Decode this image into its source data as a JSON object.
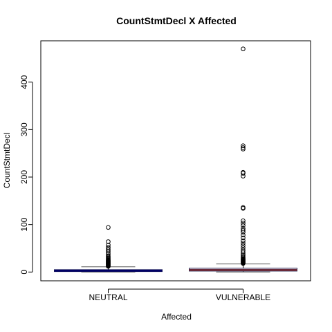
{
  "chart_data": {
    "type": "boxplot",
    "title": "CountStmtDecl X Affected",
    "xlabel": "Affected",
    "ylabel": "CountStmtDecl",
    "categories": [
      "NEUTRAL",
      "VULNERABLE"
    ],
    "ylim": [
      -18.5,
      487
    ],
    "yticks": [
      0,
      100,
      200,
      300,
      400
    ],
    "grid": false,
    "legend": "none",
    "colors": {
      "box_fill": [
        "#f4e6ef",
        "#f4e6ef"
      ],
      "box_border": [
        "#2a2a55",
        "#2a2a55"
      ],
      "median": [
        "#000066",
        "#6a2a3a"
      ]
    },
    "boxes": [
      {
        "category": "NEUTRAL",
        "min": 0,
        "q1": 1,
        "median": 3,
        "q3": 5,
        "whisker_high": 11,
        "outliers": [
          12,
          13,
          14,
          15,
          16,
          17,
          18,
          19,
          20,
          21,
          22,
          23,
          24,
          25,
          26,
          28,
          30,
          32,
          34,
          37,
          40,
          44,
          48,
          52,
          57,
          64,
          94
        ]
      },
      {
        "category": "VULNERABLE",
        "min": 0,
        "q1": 2,
        "median": 4,
        "q3": 8,
        "whisker_high": 17,
        "outliers": [
          18,
          19,
          20,
          21,
          22,
          23,
          24,
          25,
          26,
          27,
          28,
          30,
          32,
          35,
          38,
          42,
          46,
          51,
          56,
          61,
          66,
          72,
          78,
          84,
          88,
          92,
          98,
          103,
          108,
          134,
          136,
          202,
          208,
          210,
          259,
          262,
          266,
          470
        ]
      }
    ]
  }
}
